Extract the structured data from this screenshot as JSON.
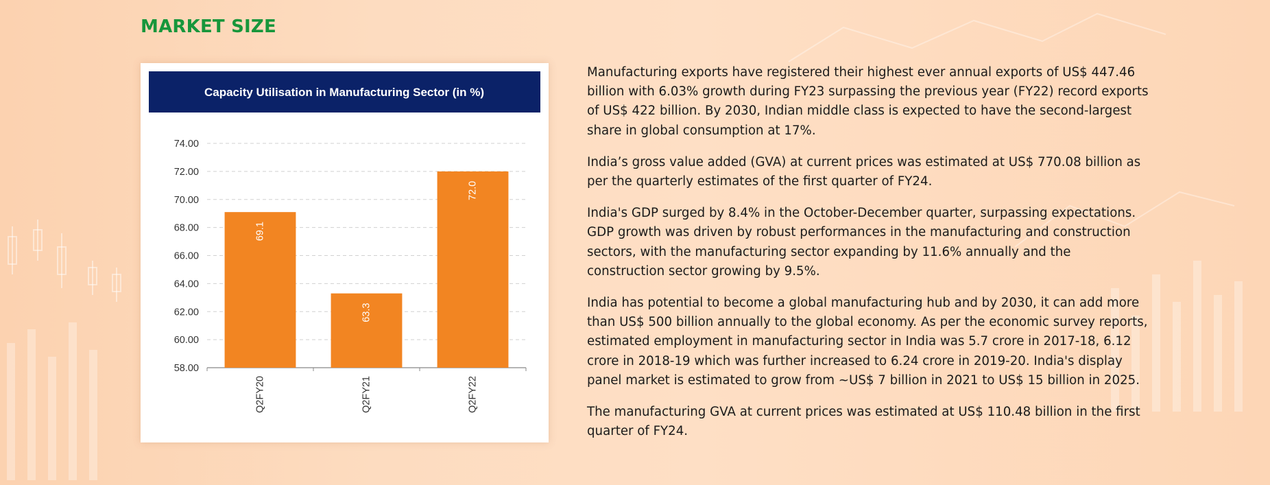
{
  "section": {
    "title": "MARKET SIZE"
  },
  "paragraphs": [
    "Manufacturing exports have registered their highest ever annual exports of US$ 447.46 billion with 6.03% growth during FY23 surpassing the previous year (FY22) record exports of US$ 422 billion. By 2030, Indian middle class is expected to have the second-largest share in global consumption at 17%.",
    "India’s gross value added (GVA) at current prices was estimated at US$ 770.08 billion as per the quarterly estimates of the first quarter of FY24.",
    "India's GDP surged by 8.4% in the October-December quarter, surpassing expectations. GDP growth was driven by robust performances in the manufacturing and construction sectors, with the manufacturing sector expanding by 11.6% annually and the construction sector growing by 9.5%.",
    "India has potential to become a global manufacturing hub and by 2030, it can add more than US$ 500 billion annually to the global economy. As per the economic survey reports, estimated employment in manufacturing sector in India was 5.7 crore in 2017-18, 6.12 crore in 2018-19 which was further increased to 6.24 crore in 2019-20. India's display panel market is estimated to grow from ~US$ 7 billion in 2021 to US$ 15 billion in 2025.",
    "The manufacturing GVA at current prices was estimated at US$ 110.48 billion in the first quarter of FY24."
  ],
  "chart_data": {
    "type": "bar",
    "title": "Capacity Utilisation in Manufacturing Sector (in %)",
    "categories": [
      "Q2FY20",
      "Q2FY21",
      "Q2FY22"
    ],
    "values": [
      69.1,
      63.3,
      72.0
    ],
    "value_labels": [
      "69.1",
      "63.3",
      "72.0"
    ],
    "ylim": [
      58,
      74
    ],
    "yticks": [
      "58.00",
      "60.00",
      "62.00",
      "64.00",
      "66.00",
      "68.00",
      "70.00",
      "72.00",
      "74.00"
    ],
    "grid": true,
    "colors": {
      "bar": "#f28522",
      "header": "#0b2268",
      "header_text": "#ffffff",
      "grid": "#d0d0d0",
      "axis": "#888888",
      "tick_text": "#333333",
      "value_text": "#ffffff"
    }
  }
}
